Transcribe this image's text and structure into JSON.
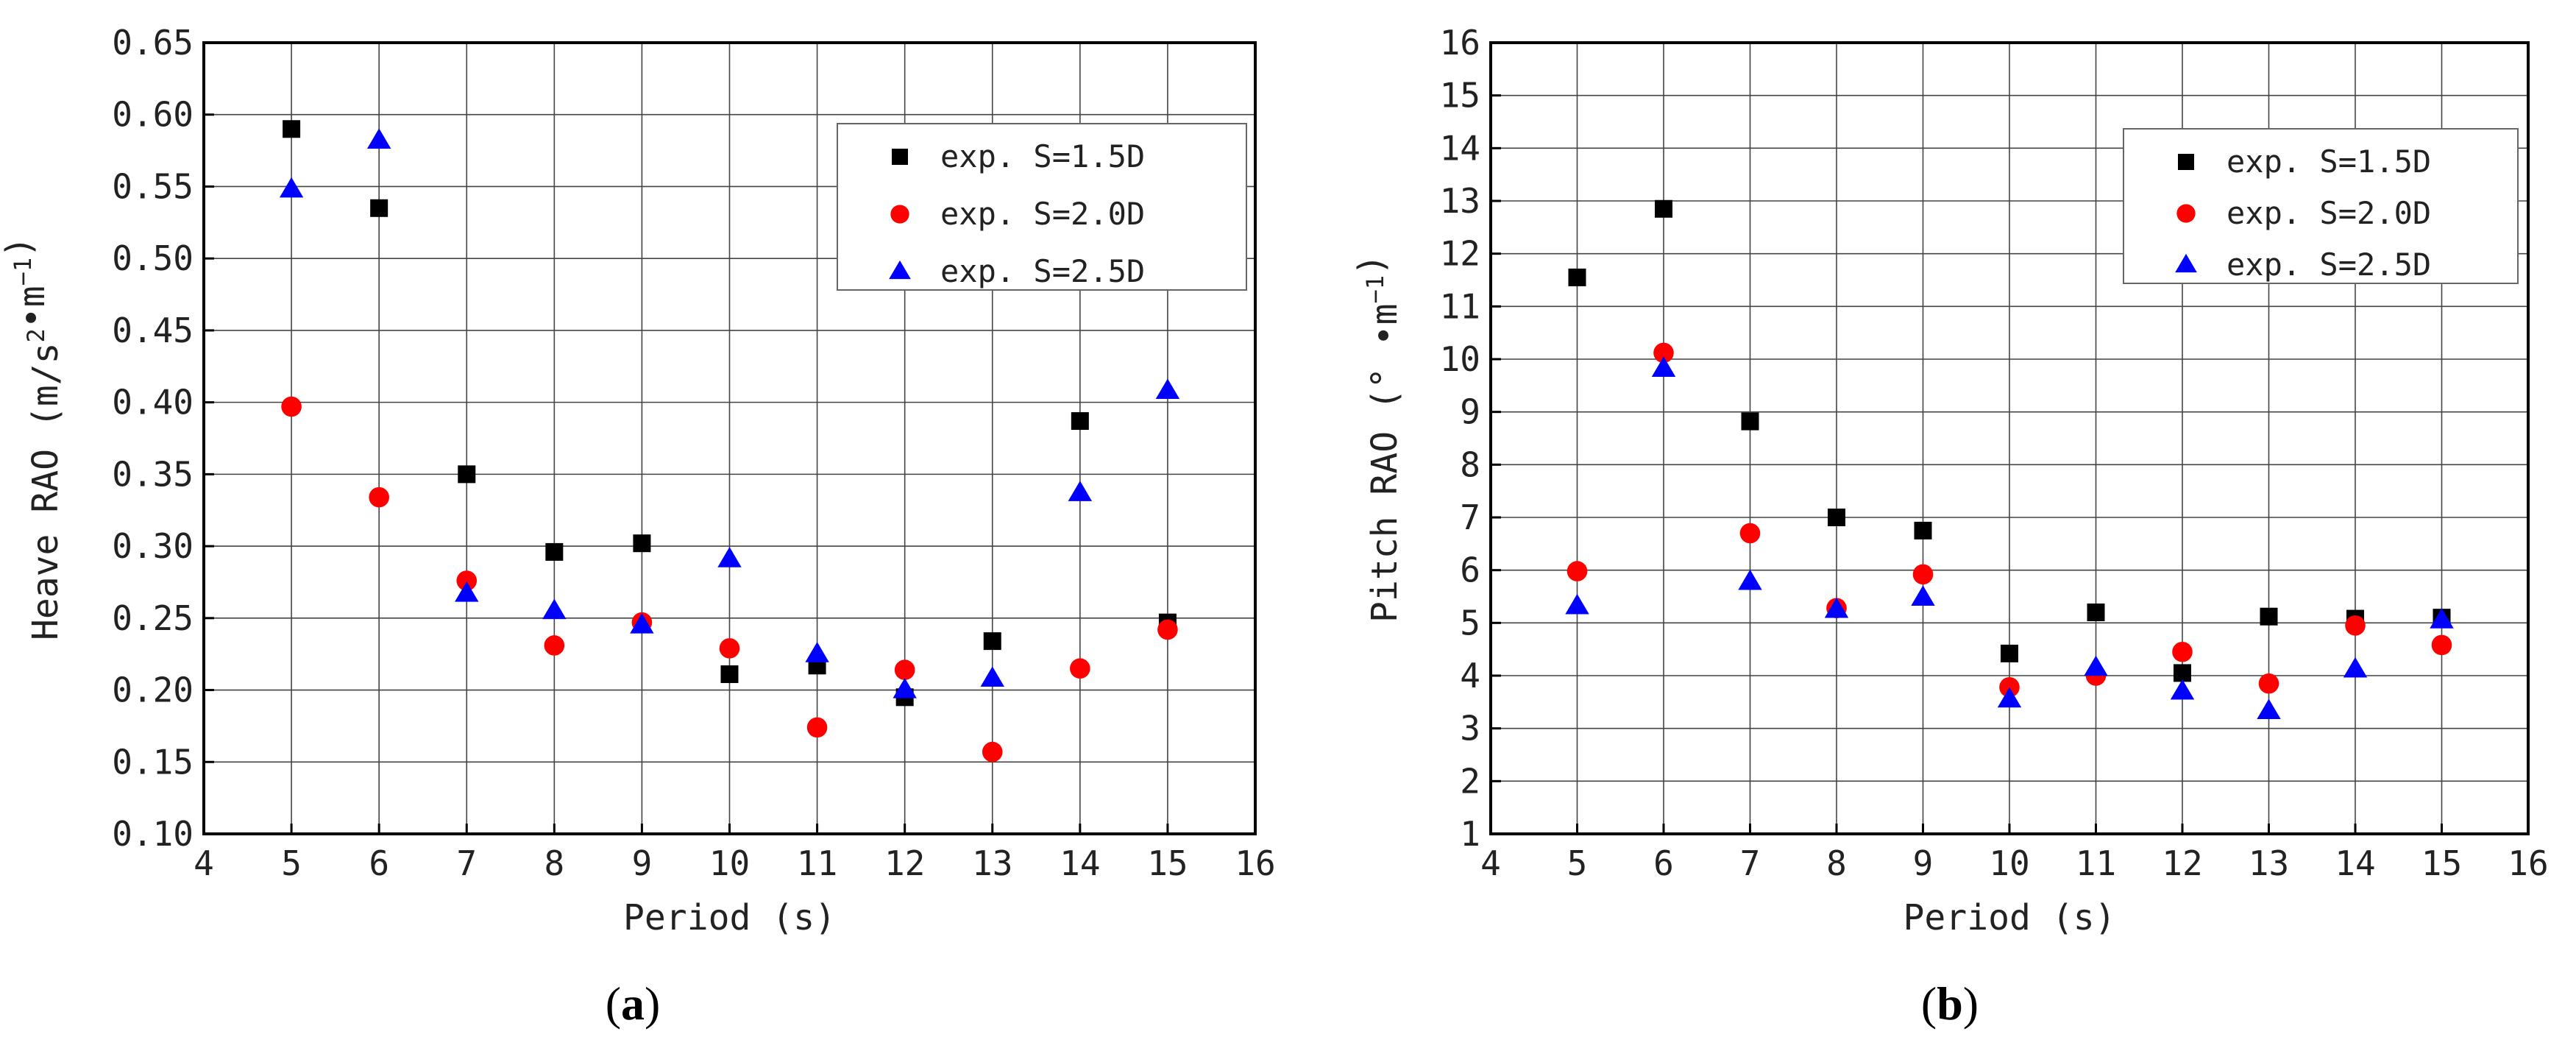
{
  "chart_data": [
    {
      "type": "scatter",
      "panel_label": "a",
      "xlabel": "Period (s)",
      "ylabel": "Heave RAO (m/s²•m⁻¹)",
      "ylabel_parts": {
        "main": "Heave RAO (m/s",
        "sup1": "2",
        "mid": "•m",
        "sup2": "−1",
        "end": ")"
      },
      "xlim": [
        4,
        16
      ],
      "ylim": [
        0.1,
        0.65
      ],
      "xticks": [
        4,
        5,
        6,
        7,
        8,
        9,
        10,
        11,
        12,
        13,
        14,
        15,
        16
      ],
      "yticks": [
        0.1,
        0.15,
        0.2,
        0.25,
        0.3,
        0.35,
        0.4,
        0.45,
        0.5,
        0.55,
        0.6,
        0.65
      ],
      "ytick_labels": [
        "0.10",
        "0.15",
        "0.20",
        "0.25",
        "0.30",
        "0.35",
        "0.40",
        "0.45",
        "0.50",
        "0.55",
        "0.60",
        "0.65"
      ],
      "grid": true,
      "legend_position": "top-right",
      "x": [
        5,
        6,
        7,
        8,
        9,
        10,
        11,
        12,
        13,
        14,
        15
      ],
      "series": [
        {
          "name": "exp.  S=1.5D",
          "marker": "square",
          "color": "#000000",
          "values": [
            0.59,
            0.535,
            0.35,
            0.296,
            0.302,
            0.211,
            0.217,
            0.195,
            0.234,
            0.387,
            0.247
          ]
        },
        {
          "name": "exp.  S=2.0D",
          "marker": "circle",
          "color": "#ff0000",
          "values": [
            0.397,
            0.334,
            0.276,
            0.231,
            0.247,
            0.229,
            0.174,
            0.214,
            0.157,
            0.215,
            0.242
          ]
        },
        {
          "name": "exp.  S=2.5D",
          "marker": "triangle",
          "color": "#0000ff",
          "values": [
            0.548,
            0.582,
            0.267,
            0.255,
            0.245,
            0.291,
            0.225,
            0.2,
            0.208,
            0.337,
            0.408
          ]
        }
      ]
    },
    {
      "type": "scatter",
      "panel_label": "b",
      "xlabel": "Period (s)",
      "ylabel": "Pitch RAO (°•m⁻¹)",
      "ylabel_parts": {
        "main": "Pitch RAO (° •m",
        "sup1": "",
        "mid": "",
        "sup2": "−1",
        "end": ")"
      },
      "xlim": [
        4,
        16
      ],
      "ylim": [
        1,
        16
      ],
      "xticks": [
        4,
        5,
        6,
        7,
        8,
        9,
        10,
        11,
        12,
        13,
        14,
        15,
        16
      ],
      "yticks": [
        1,
        2,
        3,
        4,
        5,
        6,
        7,
        8,
        9,
        10,
        11,
        12,
        13,
        14,
        15,
        16
      ],
      "ytick_labels": [
        "1",
        "2",
        "3",
        "4",
        "5",
        "6",
        "7",
        "8",
        "9",
        "10",
        "11",
        "12",
        "13",
        "14",
        "15",
        "16"
      ],
      "grid": true,
      "legend_position": "top-right",
      "x": [
        5,
        6,
        7,
        8,
        9,
        10,
        11,
        12,
        13,
        14,
        15
      ],
      "series": [
        {
          "name": "exp.  S=1.5D",
          "marker": "square",
          "color": "#000000",
          "values": [
            11.55,
            12.85,
            8.82,
            7.0,
            6.75,
            4.42,
            5.2,
            4.05,
            5.12,
            5.08,
            5.1
          ]
        },
        {
          "name": "exp.  S=2.0D",
          "marker": "circle",
          "color": "#ff0000",
          "values": [
            5.98,
            10.12,
            6.7,
            5.28,
            5.92,
            3.78,
            4.0,
            4.45,
            3.85,
            4.95,
            4.58
          ]
        },
        {
          "name": "exp.  S=2.5D",
          "marker": "triangle",
          "color": "#0000ff",
          "values": [
            5.32,
            9.82,
            5.78,
            5.25,
            5.48,
            3.55,
            4.15,
            3.7,
            3.33,
            4.12,
            5.05
          ]
        }
      ]
    }
  ]
}
